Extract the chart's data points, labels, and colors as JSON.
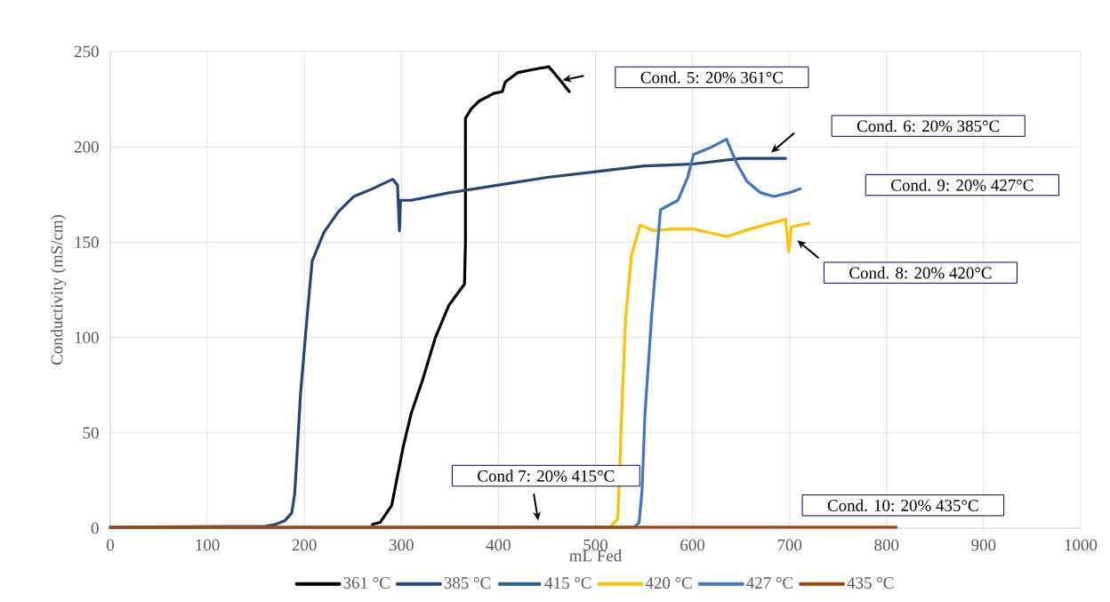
{
  "chart_data": {
    "type": "line",
    "xlabel": "mL Fed",
    "ylabel": "Conductivity (mS/cm)",
    "xlim": [
      0,
      1000
    ],
    "ylim": [
      0,
      250
    ],
    "xticks": [
      0,
      100,
      200,
      300,
      400,
      500,
      600,
      700,
      800,
      900,
      1000
    ],
    "yticks": [
      0,
      50,
      100,
      150,
      200,
      250
    ],
    "grid": true,
    "legend": "bottom",
    "marker": "none",
    "line_style": "solid",
    "series": [
      {
        "name": "361 °C",
        "color": "#000000",
        "x": [
          270,
          278,
          290,
          302,
          310,
          322,
          335,
          349,
          365,
          366,
          366,
          372,
          380,
          395,
          404,
          407,
          420,
          440,
          452,
          462,
          473
        ],
        "values": [
          2,
          3,
          12,
          43,
          60,
          78,
          100,
          117,
          128,
          150,
          215,
          220,
          224,
          228,
          229,
          234,
          239,
          241,
          242,
          236,
          229
        ]
      },
      {
        "name": "385 °C",
        "color": "#264478",
        "x": [
          0,
          160,
          170,
          180,
          187,
          190,
          193,
          196,
          203,
          208,
          220,
          235,
          251,
          270,
          291,
          296,
          298,
          299,
          310,
          350,
          400,
          450,
          500,
          550,
          600,
          650,
          696
        ],
        "values": [
          0.5,
          1,
          2,
          4,
          8,
          18,
          43,
          70,
          112,
          140,
          155,
          166,
          174,
          178,
          183,
          180,
          156,
          172,
          172,
          176,
          180,
          184,
          187,
          190,
          191,
          194,
          194
        ]
      },
      {
        "name": "415 °C",
        "color": "#255e91"
      },
      {
        "name": "420 °C",
        "color": "#ffc000",
        "x": [
          0,
          515,
          523,
          527,
          531,
          537,
          546,
          560,
          580,
          600,
          635,
          660,
          696,
          699,
          702,
          720
        ],
        "values": [
          0.3,
          0.5,
          5,
          60,
          110,
          143,
          159,
          156,
          157,
          157,
          153,
          157,
          162,
          145,
          158,
          160
        ]
      },
      {
        "name": "427 °C",
        "color": "#4472c4",
        "x": [
          0,
          540,
          545,
          548,
          551,
          558,
          567,
          585,
          595,
          601,
          620,
          635,
          645,
          656,
          670,
          684,
          700,
          711
        ],
        "values": [
          0.3,
          0.5,
          3,
          20,
          60,
          112,
          167,
          172,
          184,
          196,
          200,
          204,
          192,
          182,
          176,
          174,
          176,
          178
        ]
      },
      {
        "name": "435 °C",
        "color": "#9e480e",
        "x": [
          0,
          810
        ],
        "values": [
          0.5,
          0.5
        ]
      }
    ],
    "annotations": [
      "Cond. 5: 20% 361°C",
      "Cond. 6: 20% 385°C",
      "Cond. 9: 20% 427°C",
      "Cond. 8: 20% 420°C",
      "Cond 7: 20% 415°C",
      "Cond. 10: 20% 435°C"
    ]
  }
}
